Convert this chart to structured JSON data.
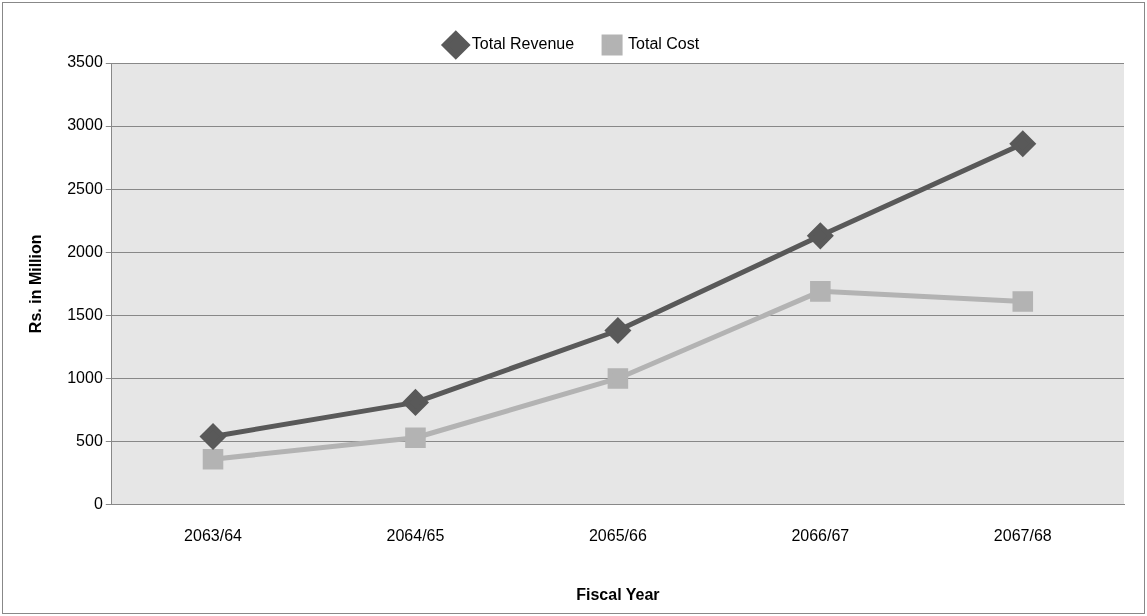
{
  "chart_data": {
    "type": "line",
    "xlabel": "Fiscal Year",
    "ylabel": "Rs. in Million",
    "categories": [
      "2063/64",
      "2064/65",
      "2065/66",
      "2066/67",
      "2067/68"
    ],
    "series": [
      {
        "name": "Total Revenue",
        "color": "#595959",
        "marker": "diamond",
        "values": [
          540,
          810,
          1380,
          2130,
          2860
        ]
      },
      {
        "name": "Total Cost",
        "color": "#b3b3b3",
        "marker": "square",
        "values": [
          360,
          530,
          1000,
          1690,
          1610
        ]
      }
    ],
    "ylim": [
      0,
      3500
    ],
    "yticks": [
      0,
      500,
      1000,
      1500,
      2000,
      2500,
      3000,
      3500
    ],
    "grid": "y",
    "legend": "top",
    "line_style": "solid"
  }
}
